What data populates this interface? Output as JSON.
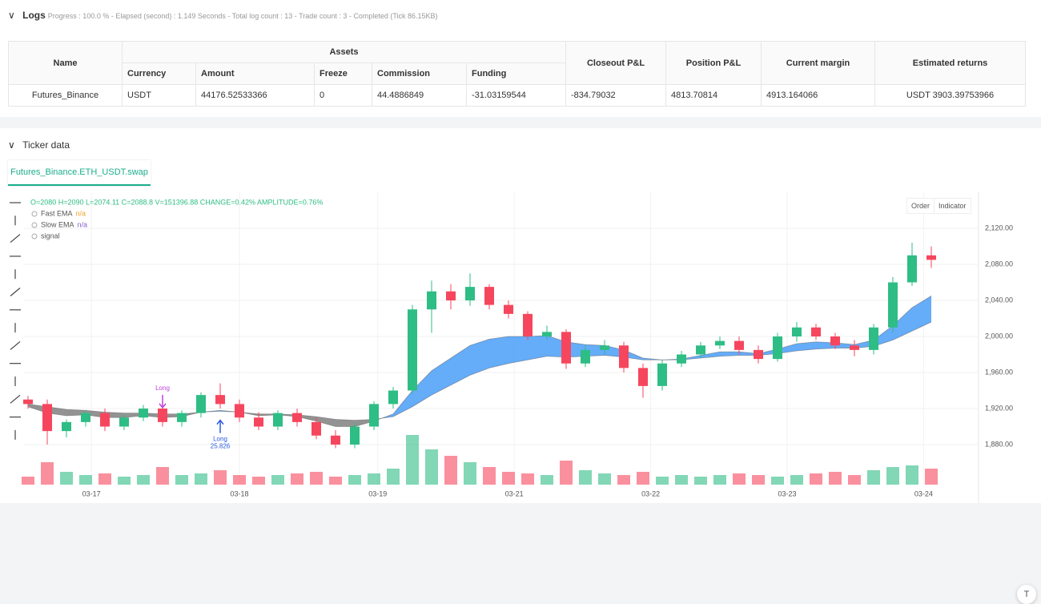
{
  "logs": {
    "title": "Logs",
    "status": "Progress : 100.0 % - Elapsed (second) : 1.149 Seconds - Total log count : 13 - Trade count : 3 - Completed (Tick 86.15KB)"
  },
  "table": {
    "header_top": [
      "Name",
      "Assets",
      "Closeout P&L",
      "Position P&L",
      "Current margin",
      "Estimated returns"
    ],
    "header_sub": [
      "Currency",
      "Amount",
      "Freeze",
      "Commission",
      "Funding"
    ],
    "rows": [
      [
        "Futures_Binance",
        "USDT",
        "44176.52533366",
        "0",
        "44.4886849",
        "-31.03159544",
        "-834.79032",
        "4813.70814",
        "4913.164066",
        "USDT 3903.39753966"
      ]
    ]
  },
  "ticker": {
    "title": "Ticker data",
    "tab": "Futures_Binance.ETH_USDT.swap",
    "buttons": [
      "Order",
      "Indicator"
    ]
  },
  "chart_data": {
    "type": "candlestick",
    "info": "O=2080 H=2090 L=2074.11 C=2088.8 V=151396.88 CHANGE=0.42% AMPLITUDE=0.76%",
    "open": [
      1930,
      1925,
      1895,
      1905,
      1915,
      1900,
      1910,
      1920,
      1905,
      1915,
      1935,
      1925,
      1910,
      1900,
      1915,
      1905,
      1890,
      1880,
      1900,
      1925,
      1940,
      2030,
      2050,
      2040,
      2055,
      2035,
      2025,
      2000,
      2005,
      1970,
      1985,
      1990,
      1965,
      1945,
      1970,
      1980,
      1990,
      1995,
      1985,
      1975,
      2000,
      2010,
      2000,
      1990,
      1985,
      2010,
      2060,
      2090
    ],
    "high": [
      1934,
      1930,
      1908,
      1918,
      1920,
      1914,
      1924,
      1926,
      1918,
      1938,
      1948,
      1930,
      1916,
      1918,
      1920,
      1910,
      1896,
      1904,
      1928,
      1944,
      2035,
      2062,
      2058,
      2070,
      2058,
      2040,
      2028,
      2012,
      2008,
      1990,
      1996,
      1994,
      1970,
      1974,
      1984,
      1994,
      2000,
      2000,
      1990,
      2004,
      2016,
      2014,
      2004,
      1996,
      2014,
      2066,
      2104,
      2100
    ],
    "low": [
      1920,
      1880,
      1888,
      1900,
      1895,
      1896,
      1906,
      1900,
      1900,
      1910,
      1920,
      1905,
      1896,
      1896,
      1900,
      1886,
      1876,
      1876,
      1896,
      1920,
      1936,
      2004,
      2030,
      2034,
      2030,
      2020,
      1996,
      1996,
      1964,
      1966,
      1980,
      1960,
      1932,
      1940,
      1966,
      1976,
      1986,
      1980,
      1970,
      1972,
      1994,
      1996,
      1986,
      1978,
      1980,
      2004,
      2056,
      2076
    ],
    "close": [
      1925,
      1895,
      1905,
      1915,
      1900,
      1910,
      1920,
      1905,
      1915,
      1935,
      1925,
      1910,
      1900,
      1915,
      1905,
      1890,
      1880,
      1900,
      1925,
      1940,
      2030,
      2050,
      2040,
      2055,
      2035,
      2025,
      2000,
      2005,
      1970,
      1985,
      1990,
      1965,
      1945,
      1970,
      1980,
      1990,
      1995,
      1985,
      1975,
      2000,
      2010,
      2000,
      1990,
      1985,
      2010,
      2060,
      2090,
      2085
    ],
    "volume": [
      10,
      28,
      16,
      12,
      14,
      10,
      12,
      22,
      12,
      14,
      18,
      12,
      10,
      12,
      14,
      16,
      10,
      12,
      14,
      20,
      62,
      44,
      36,
      28,
      22,
      16,
      14,
      12,
      30,
      18,
      14,
      12,
      16,
      10,
      12,
      10,
      12,
      14,
      12,
      10,
      12,
      14,
      16,
      12,
      18,
      22,
      24,
      20
    ],
    "up_color": "#2ebd85",
    "down_color": "#f6465d",
    "series": [
      {
        "name": "Fast EMA",
        "status": "n/a",
        "color": "#f0a030",
        "values": [
          1922,
          1915,
          1912,
          1913,
          1910,
          1910,
          1912,
          1910,
          1911,
          1916,
          1918,
          1916,
          1912,
          1913,
          1911,
          1906,
          1900,
          1900,
          1906,
          1914,
          1940,
          1962,
          1976,
          1990,
          1997,
          2000,
          2000,
          2001,
          1994,
          1991,
          1990,
          1985,
          1976,
          1974,
          1975,
          1979,
          1983,
          1983,
          1981,
          1986,
          1992,
          1994,
          1993,
          1991,
          1996,
          2012,
          2032,
          2045
        ]
      },
      {
        "name": "Slow EMA",
        "status": "n/a",
        "color": "#8a5cd0",
        "values": [
          1925,
          1922,
          1919,
          1918,
          1916,
          1915,
          1915,
          1914,
          1914,
          1916,
          1917,
          1916,
          1914,
          1914,
          1913,
          1911,
          1908,
          1907,
          1908,
          1911,
          1922,
          1935,
          1946,
          1957,
          1965,
          1970,
          1974,
          1978,
          1977,
          1978,
          1979,
          1977,
          1974,
          1974,
          1974,
          1976,
          1978,
          1979,
          1979,
          1981,
          1984,
          1986,
          1987,
          1987,
          1989,
          1996,
          2006,
          2016
        ]
      }
    ],
    "band_up_color": "#4a9df8",
    "band_down_color": "#808080",
    "signal_legend": "signal",
    "signals": [
      {
        "text": "Long",
        "index": 7,
        "value": 1921,
        "color": "#c040e0",
        "direction": "down"
      },
      {
        "text": "Long",
        "amount": "25.826",
        "index": 10,
        "value": 1907,
        "color": "#2a5be0",
        "direction": "up"
      }
    ],
    "ylim": [
      1840,
      2160
    ],
    "yticks": [
      {
        "value": 1880,
        "label": "1,880.00"
      },
      {
        "value": 1920,
        "label": "1,920.00"
      },
      {
        "value": 1960,
        "label": "1,960.00"
      },
      {
        "value": 2000,
        "label": "2,000.00"
      },
      {
        "value": 2040,
        "label": "2,040.00"
      },
      {
        "value": 2080,
        "label": "2,080.00"
      },
      {
        "value": 2120,
        "label": "2,120.00"
      }
    ],
    "xticks": [
      {
        "value": 3.3,
        "label": "03-17"
      },
      {
        "value": 11,
        "label": "03-18"
      },
      {
        "value": 18.2,
        "label": "03-19"
      },
      {
        "value": 25.3,
        "label": "03-21"
      },
      {
        "value": 32.4,
        "label": "03-22"
      },
      {
        "value": 39.5,
        "label": "03-23"
      },
      {
        "value": 46.6,
        "label": "03-24"
      }
    ]
  }
}
